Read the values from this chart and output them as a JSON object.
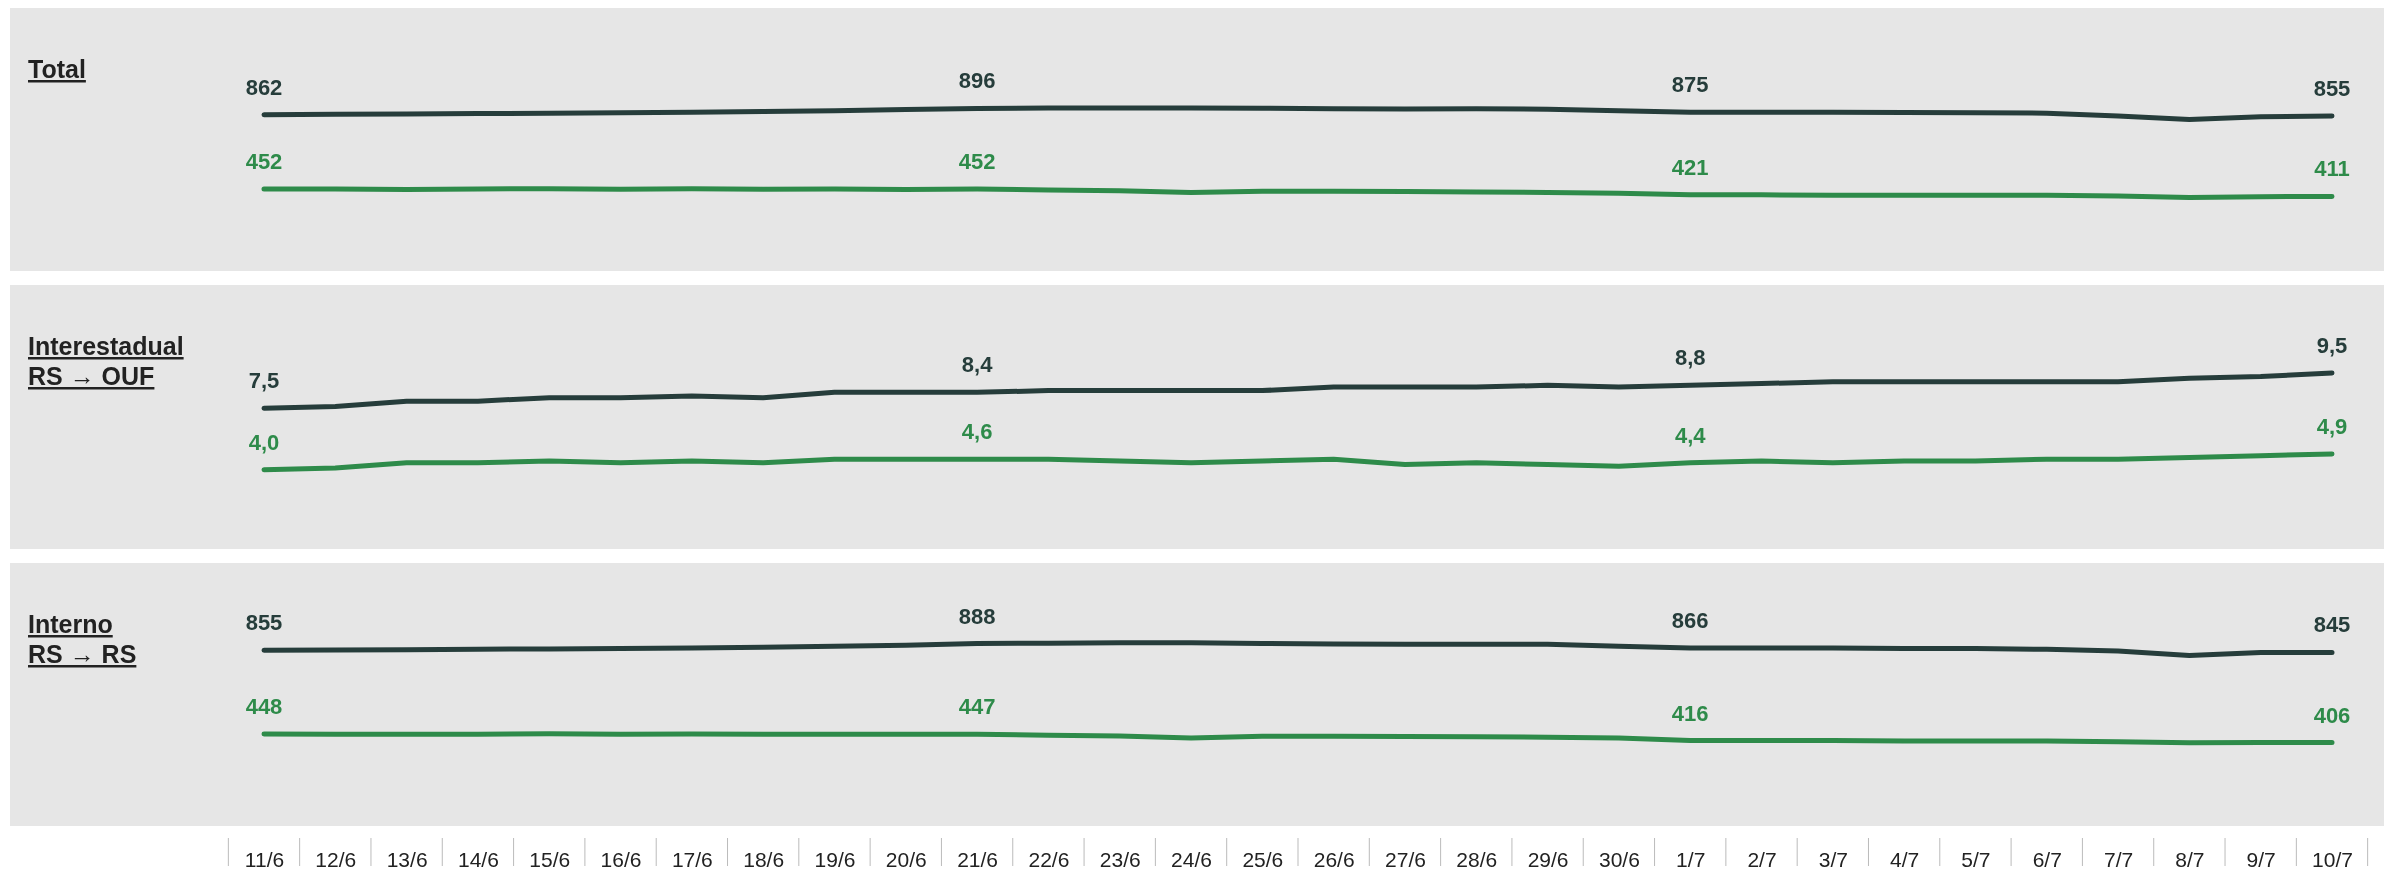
{
  "chart_data": [
    {
      "type": "line",
      "title": "Total",
      "categories": [
        "11/6",
        "12/6",
        "13/6",
        "14/6",
        "15/6",
        "16/6",
        "17/6",
        "18/6",
        "19/6",
        "20/6",
        "21/6",
        "22/6",
        "23/6",
        "24/6",
        "25/6",
        "26/6",
        "27/6",
        "28/6",
        "29/6",
        "30/6",
        "1/7",
        "2/7",
        "3/7",
        "4/7",
        "5/7",
        "6/7",
        "7/7",
        "8/7",
        "9/7",
        "10/7"
      ],
      "ylim": [
        0,
        1450
      ],
      "tick_labels": false,
      "series": [
        {
          "color": "#263d3b",
          "values": [
            862,
            864,
            866,
            868,
            870,
            872,
            875,
            879,
            884,
            890,
            896,
            898,
            899,
            899,
            897,
            895,
            893,
            894,
            892,
            884,
            875,
            875,
            875,
            874,
            873,
            870,
            855,
            835,
            850,
            855
          ],
          "value_labels": [
            "862",
            null,
            null,
            null,
            null,
            null,
            null,
            null,
            null,
            null,
            "896",
            null,
            null,
            null,
            null,
            null,
            null,
            null,
            null,
            null,
            "875",
            null,
            null,
            null,
            null,
            null,
            null,
            null,
            null,
            "855"
          ]
        },
        {
          "color": "#2e8b4a",
          "values": [
            452,
            452,
            450,
            452,
            454,
            451,
            453,
            451,
            452,
            450,
            452,
            447,
            443,
            433,
            440,
            440,
            438,
            436,
            433,
            428,
            421,
            420,
            418,
            418,
            418,
            418,
            414,
            405,
            410,
            411
          ],
          "value_labels": [
            "452",
            null,
            null,
            null,
            null,
            null,
            null,
            null,
            null,
            null,
            "452",
            null,
            null,
            null,
            null,
            null,
            null,
            null,
            null,
            null,
            "421",
            null,
            null,
            null,
            null,
            null,
            null,
            null,
            null,
            "411"
          ]
        }
      ]
    },
    {
      "type": "line",
      "title": "Interestadual\nRS → OUF",
      "categories": [
        "11/6",
        "12/6",
        "13/6",
        "14/6",
        "15/6",
        "16/6",
        "17/6",
        "18/6",
        "19/6",
        "20/6",
        "21/6",
        "22/6",
        "23/6",
        "24/6",
        "25/6",
        "26/6",
        "27/6",
        "28/6",
        "29/6",
        "30/6",
        "1/7",
        "2/7",
        "3/7",
        "4/7",
        "5/7",
        "6/7",
        "7/7",
        "8/7",
        "9/7",
        "10/7"
      ],
      "ylim": [
        -0.5,
        14.5
      ],
      "tick_labels": false,
      "series": [
        {
          "color": "#263d3b",
          "values": [
            7.5,
            7.6,
            7.9,
            7.9,
            8.1,
            8.1,
            8.2,
            8.1,
            8.4,
            8.4,
            8.4,
            8.5,
            8.5,
            8.5,
            8.5,
            8.7,
            8.7,
            8.7,
            8.8,
            8.7,
            8.8,
            8.9,
            9.0,
            9.0,
            9.0,
            9.0,
            9.0,
            9.2,
            9.3,
            9.5
          ],
          "value_labels": [
            "7,5",
            null,
            null,
            null,
            null,
            null,
            null,
            null,
            null,
            null,
            "8,4",
            null,
            null,
            null,
            null,
            null,
            null,
            null,
            null,
            null,
            "8,8",
            null,
            null,
            null,
            null,
            null,
            null,
            null,
            null,
            "9,5"
          ]
        },
        {
          "color": "#2e8b4a",
          "values": [
            4.0,
            4.1,
            4.4,
            4.4,
            4.5,
            4.4,
            4.5,
            4.4,
            4.6,
            4.6,
            4.6,
            4.6,
            4.5,
            4.4,
            4.5,
            4.6,
            4.3,
            4.4,
            4.3,
            4.2,
            4.4,
            4.5,
            4.4,
            4.5,
            4.5,
            4.6,
            4.6,
            4.7,
            4.8,
            4.9
          ],
          "value_labels": [
            "4,0",
            null,
            null,
            null,
            null,
            null,
            null,
            null,
            null,
            null,
            "4,6",
            null,
            null,
            null,
            null,
            null,
            null,
            null,
            null,
            null,
            "4,4",
            null,
            null,
            null,
            null,
            null,
            null,
            null,
            null,
            "4,9"
          ]
        }
      ]
    },
    {
      "type": "line",
      "title": "Interno\nRS → RS",
      "categories": [
        "11/6",
        "12/6",
        "13/6",
        "14/6",
        "15/6",
        "16/6",
        "17/6",
        "18/6",
        "19/6",
        "20/6",
        "21/6",
        "22/6",
        "23/6",
        "24/6",
        "25/6",
        "26/6",
        "27/6",
        "28/6",
        "29/6",
        "30/6",
        "1/7",
        "2/7",
        "3/7",
        "4/7",
        "5/7",
        "6/7",
        "7/7",
        "8/7",
        "9/7",
        "10/7"
      ],
      "ylim": [
        0,
        1280
      ],
      "tick_labels": "x",
      "series": [
        {
          "color": "#263d3b",
          "values": [
            855,
            856,
            858,
            860,
            862,
            864,
            866,
            870,
            875,
            880,
            888,
            890,
            892,
            892,
            888,
            886,
            884,
            884,
            884,
            875,
            866,
            866,
            866,
            864,
            864,
            860,
            852,
            830,
            845,
            845
          ],
          "value_labels": [
            "855",
            null,
            null,
            null,
            null,
            null,
            null,
            null,
            null,
            null,
            "888",
            null,
            null,
            null,
            null,
            null,
            null,
            null,
            null,
            null,
            "866",
            null,
            null,
            null,
            null,
            null,
            null,
            null,
            null,
            "845"
          ]
        },
        {
          "color": "#2e8b4a",
          "values": [
            448,
            446,
            446,
            447,
            449,
            446,
            448,
            446,
            446,
            446,
            447,
            442,
            438,
            428,
            437,
            437,
            436,
            434,
            432,
            428,
            416,
            416,
            416,
            414,
            414,
            414,
            410,
            405,
            406,
            406
          ],
          "value_labels": [
            "448",
            null,
            null,
            null,
            null,
            null,
            null,
            null,
            null,
            null,
            "447",
            null,
            null,
            null,
            null,
            null,
            null,
            null,
            null,
            null,
            "416",
            null,
            null,
            null,
            null,
            null,
            null,
            null,
            null,
            "406"
          ]
        }
      ]
    }
  ]
}
